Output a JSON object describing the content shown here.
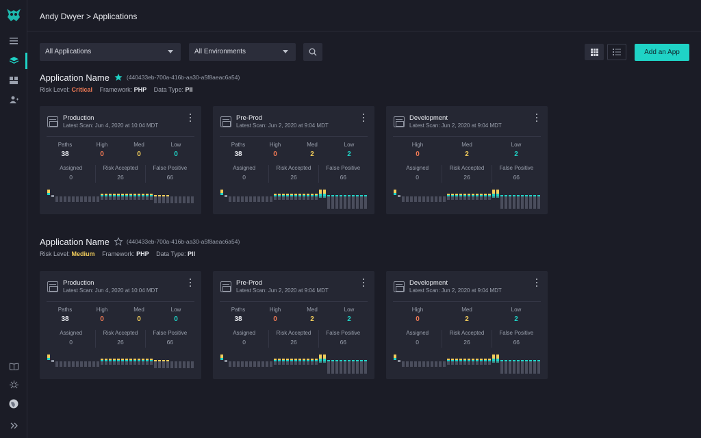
{
  "header": {
    "breadcrumb": "Andy Dwyer > Applications"
  },
  "toolbar": {
    "app_filter": "All Applications",
    "env_filter": "All Environments",
    "add_label": "Add an App"
  },
  "sidebar": {
    "icons": [
      "menu-icon",
      "layers-icon",
      "dashboard-icon",
      "users-icon",
      "book-icon",
      "bug-icon",
      "globe-icon",
      "expand-icon"
    ]
  },
  "colors": {
    "accent": "#1fd3c6",
    "critical": "#f07a55",
    "medium": "#f2cd5b",
    "card": "#252733"
  },
  "applications": [
    {
      "name": "Application Name",
      "id": "(440433eb-700a-416b-aa30-a5f8aeac6a54)",
      "starred": true,
      "risk_label": "Risk Level:",
      "risk": "Critical",
      "framework_label": "Framework:",
      "framework": "PHP",
      "data_type_label": "Data Type:",
      "data_type": "PII",
      "cards": [
        {
          "env": "Production",
          "scan": "Latest Scan: Jun 4, 2020 at 10:04 MDT",
          "stats": [
            {
              "label": "Paths",
              "value": "38"
            },
            {
              "label": "High",
              "value": "0"
            },
            {
              "label": "Med",
              "value": "0"
            },
            {
              "label": "Low",
              "value": "0"
            }
          ],
          "assigned_label": "Assigned",
          "assigned": "0",
          "risk_accepted_label": "Risk Accepted",
          "risk_accepted": "26",
          "false_positive_label": "False Positive",
          "false_positive": "66"
        },
        {
          "env": "Pre-Prod",
          "scan": "Latest Scan: Jun 2, 2020 at 9:04 MDT",
          "stats": [
            {
              "label": "Paths",
              "value": "38"
            },
            {
              "label": "High",
              "value": "0"
            },
            {
              "label": "Med",
              "value": "2"
            },
            {
              "label": "Low",
              "value": "2"
            }
          ],
          "assigned_label": "Assigned",
          "assigned": "0",
          "risk_accepted_label": "Risk Accepted",
          "risk_accepted": "26",
          "false_positive_label": "False Positive",
          "false_positive": "66"
        },
        {
          "env": "Development",
          "scan": "Latest Scan: Jun 2, 2020 at 9:04 MDT",
          "stats": [
            {
              "label": "High",
              "value": "0"
            },
            {
              "label": "Med",
              "value": "2"
            },
            {
              "label": "Low",
              "value": "2"
            }
          ],
          "assigned_label": "Assigned",
          "assigned": "0",
          "risk_accepted_label": "Risk Accepted",
          "risk_accepted": "26",
          "false_positive_label": "False Positive",
          "false_positive": "66"
        }
      ]
    },
    {
      "name": "Application Name",
      "id": "(440433eb-700a-416b-aa30-a5f8aeac6a54)",
      "starred": false,
      "risk_label": "Risk Level:",
      "risk": "Medium",
      "framework_label": "Framework:",
      "framework": "PHP",
      "data_type_label": "Data Type:",
      "data_type": "PII",
      "cards": [
        {
          "env": "Production",
          "scan": "Latest Scan: Jun 4, 2020 at 10:04 MDT",
          "stats": [
            {
              "label": "Paths",
              "value": "38"
            },
            {
              "label": "High",
              "value": "0"
            },
            {
              "label": "Med",
              "value": "0"
            },
            {
              "label": "Low",
              "value": "0"
            }
          ],
          "assigned_label": "Assigned",
          "assigned": "0",
          "risk_accepted_label": "Risk Accepted",
          "risk_accepted": "26",
          "false_positive_label": "False Positive",
          "false_positive": "66"
        },
        {
          "env": "Pre-Prod",
          "scan": "Latest Scan: Jun 2, 2020 at 9:04 MDT",
          "stats": [
            {
              "label": "Paths",
              "value": "38"
            },
            {
              "label": "High",
              "value": "0"
            },
            {
              "label": "Med",
              "value": "2"
            },
            {
              "label": "Low",
              "value": "2"
            }
          ],
          "assigned_label": "Assigned",
          "assigned": "0",
          "risk_accepted_label": "Risk Accepted",
          "risk_accepted": "26",
          "false_positive_label": "False Positive",
          "false_positive": "66"
        },
        {
          "env": "Development",
          "scan": "Latest Scan: Jun 2, 2020 at 9:04 MDT",
          "stats": [
            {
              "label": "High",
              "value": "0"
            },
            {
              "label": "Med",
              "value": "2"
            },
            {
              "label": "Low",
              "value": "2"
            }
          ],
          "assigned_label": "Assigned",
          "assigned": "0",
          "risk_accepted_label": "Risk Accepted",
          "risk_accepted": "26",
          "false_positive_label": "False Positive",
          "false_positive": "66"
        }
      ]
    }
  ]
}
